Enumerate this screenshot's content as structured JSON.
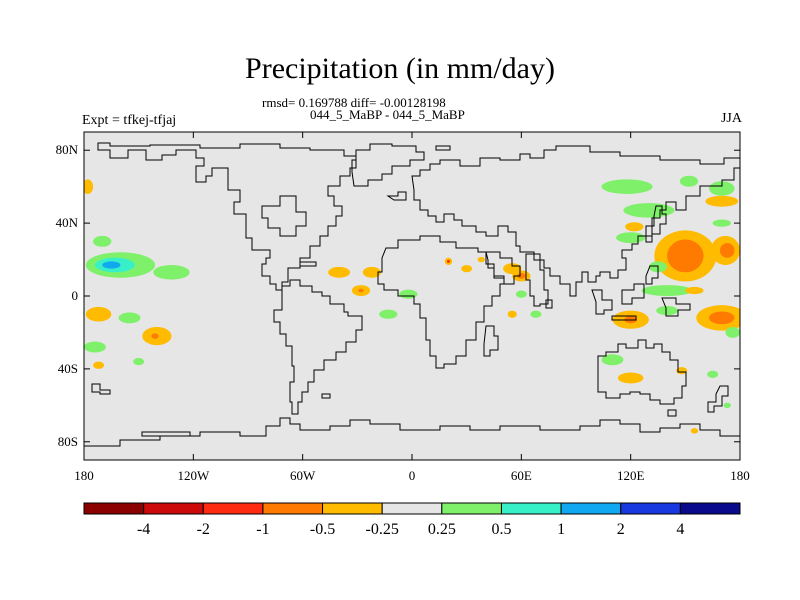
{
  "title": "Precipitation (in mm/day)",
  "stats": "rmsd= 0.169788 diff= -0.00128198",
  "cases": "044_5_MaBP - 044_5_MaBP",
  "experiment": "Expt = tfkej-tfjaj",
  "season": "JJA",
  "chart_data": {
    "type": "heatmap",
    "projection": "cylindrical-equidistant",
    "lon_range": [
      -180,
      180
    ],
    "lat_range": [
      -90,
      90
    ],
    "lon_ticks": [
      {
        "value": -180,
        "label": "180"
      },
      {
        "value": -120,
        "label": "120W"
      },
      {
        "value": -60,
        "label": "60W"
      },
      {
        "value": 0,
        "label": "0"
      },
      {
        "value": 60,
        "label": "60E"
      },
      {
        "value": 120,
        "label": "120E"
      },
      {
        "value": 180,
        "label": "180"
      }
    ],
    "lat_ticks": [
      {
        "value": 80,
        "label": "80N"
      },
      {
        "value": 40,
        "label": "40N"
      },
      {
        "value": 0,
        "label": "0"
      },
      {
        "value": -40,
        "label": "40S"
      },
      {
        "value": -80,
        "label": "80S"
      }
    ],
    "colorbar": {
      "labels": [
        "-4",
        "-2",
        "-1",
        "-0.5",
        "-0.25",
        "0.25",
        "0.5",
        "1",
        "2",
        "4"
      ],
      "colors": [
        "#8b0000",
        "#cc0a0a",
        "#ff2b10",
        "#ff7a00",
        "#ffbb00",
        "#e6e6e6",
        "#7ff06a",
        "#38f0c8",
        "#10a8f0",
        "#1838e0",
        "#0a0a8c"
      ]
    },
    "background_color": "#e6e6e6",
    "anomaly_blobs": [
      {
        "lon": -178,
        "lat": 60,
        "rlon": 3,
        "rlat": 4,
        "color": "#ffbb00"
      },
      {
        "lon": -170,
        "lat": 30,
        "rlon": 5,
        "rlat": 3,
        "color": "#7ff06a"
      },
      {
        "lon": -160,
        "lat": 17,
        "rlon": 19,
        "rlat": 7,
        "color": "#7ff06a"
      },
      {
        "lon": -163,
        "lat": 17,
        "rlon": 11,
        "rlat": 4,
        "color": "#38f0c8"
      },
      {
        "lon": -165,
        "lat": 17,
        "rlon": 5,
        "rlat": 2,
        "color": "#10a8f0"
      },
      {
        "lon": -132,
        "lat": 13,
        "rlon": 10,
        "rlat": 4,
        "color": "#7ff06a"
      },
      {
        "lon": -172,
        "lat": -10,
        "rlon": 7,
        "rlat": 4,
        "color": "#ffbb00"
      },
      {
        "lon": -155,
        "lat": -12,
        "rlon": 6,
        "rlat": 3,
        "color": "#7ff06a"
      },
      {
        "lon": -140,
        "lat": -22,
        "rlon": 8,
        "rlat": 5,
        "color": "#ffbb00"
      },
      {
        "lon": -141,
        "lat": -22,
        "rlon": 2,
        "rlat": 1.5,
        "color": "#ff7a00"
      },
      {
        "lon": -174,
        "lat": -28,
        "rlon": 6,
        "rlat": 3,
        "color": "#7ff06a"
      },
      {
        "lon": -150,
        "lat": -36,
        "rlon": 3,
        "rlat": 2,
        "color": "#7ff06a"
      },
      {
        "lon": -172,
        "lat": -38,
        "rlon": 3,
        "rlat": 2,
        "color": "#ffbb00"
      },
      {
        "lon": -40,
        "lat": 13,
        "rlon": 6,
        "rlat": 3,
        "color": "#ffbb00"
      },
      {
        "lon": -22,
        "lat": 13,
        "rlon": 5,
        "rlat": 3,
        "color": "#ffbb00"
      },
      {
        "lon": -28,
        "lat": 3,
        "rlon": 5,
        "rlat": 3,
        "color": "#ffbb00"
      },
      {
        "lon": -28,
        "lat": 3,
        "rlon": 1.5,
        "rlat": 1,
        "color": "#ff7a00"
      },
      {
        "lon": -2,
        "lat": 1,
        "rlon": 5,
        "rlat": 2.5,
        "color": "#7ff06a"
      },
      {
        "lon": -13,
        "lat": -10,
        "rlon": 5,
        "rlat": 2.5,
        "color": "#7ff06a"
      },
      {
        "lon": 20,
        "lat": 19,
        "rlon": 2,
        "rlat": 2,
        "color": "#ffbb00"
      },
      {
        "lon": 20,
        "lat": 19,
        "rlon": 0.8,
        "rlat": 0.8,
        "color": "#ff2b10"
      },
      {
        "lon": 30,
        "lat": 15,
        "rlon": 3,
        "rlat": 2,
        "color": "#ffbb00"
      },
      {
        "lon": 38,
        "lat": 20,
        "rlon": 2,
        "rlat": 1.5,
        "color": "#ffbb00"
      },
      {
        "lon": 55,
        "lat": 15,
        "rlon": 5,
        "rlat": 3,
        "color": "#ffbb00"
      },
      {
        "lon": 60,
        "lat": 11,
        "rlon": 5,
        "rlat": 3,
        "color": "#ffbb00"
      },
      {
        "lon": 60,
        "lat": 11,
        "rlon": 2.2,
        "rlat": 1.6,
        "color": "#ff7a00"
      },
      {
        "lon": 60,
        "lat": 1,
        "rlon": 3,
        "rlat": 2,
        "color": "#7ff06a"
      },
      {
        "lon": 55,
        "lat": -10,
        "rlon": 2.5,
        "rlat": 2,
        "color": "#ffbb00"
      },
      {
        "lon": 68,
        "lat": -10,
        "rlon": 3,
        "rlat": 2,
        "color": "#7ff06a"
      },
      {
        "lon": 118,
        "lat": 60,
        "rlon": 14,
        "rlat": 4,
        "color": "#7ff06a"
      },
      {
        "lon": 152,
        "lat": 63,
        "rlon": 5,
        "rlat": 3,
        "color": "#7ff06a"
      },
      {
        "lon": 170,
        "lat": 59,
        "rlon": 7,
        "rlat": 4,
        "color": "#7ff06a"
      },
      {
        "lon": 130,
        "lat": 47,
        "rlon": 14,
        "rlat": 4,
        "color": "#7ff06a"
      },
      {
        "lon": 170,
        "lat": 52,
        "rlon": 9,
        "rlat": 3,
        "color": "#ffbb00"
      },
      {
        "lon": 170,
        "lat": 40,
        "rlon": 5,
        "rlat": 2,
        "color": "#7ff06a"
      },
      {
        "lon": 120,
        "lat": 32,
        "rlon": 8,
        "rlat": 3,
        "color": "#7ff06a"
      },
      {
        "lon": 122,
        "lat": 38,
        "rlon": 5,
        "rlat": 2.5,
        "color": "#ffbb00"
      },
      {
        "lon": 150,
        "lat": 22,
        "rlon": 17,
        "rlat": 14,
        "color": "#ffbb00"
      },
      {
        "lon": 150,
        "lat": 22,
        "rlon": 10,
        "rlat": 9,
        "color": "#ff7a00"
      },
      {
        "lon": 172,
        "lat": 25,
        "rlon": 8,
        "rlat": 8,
        "color": "#ffbb00"
      },
      {
        "lon": 173,
        "lat": 25,
        "rlon": 4,
        "rlat": 4,
        "color": "#ff7a00"
      },
      {
        "lon": 135,
        "lat": 16,
        "rlon": 5,
        "rlat": 3,
        "color": "#7ff06a"
      },
      {
        "lon": 140,
        "lat": 3,
        "rlon": 14,
        "rlat": 3,
        "color": "#7ff06a"
      },
      {
        "lon": 155,
        "lat": 3,
        "rlon": 5,
        "rlat": 2,
        "color": "#ffbb00"
      },
      {
        "lon": 120,
        "lat": -13,
        "rlon": 10,
        "rlat": 5,
        "color": "#ffbb00"
      },
      {
        "lon": 120,
        "lat": -13,
        "rlon": 3.5,
        "rlat": 2,
        "color": "#ff7a00"
      },
      {
        "lon": 170,
        "lat": -12,
        "rlon": 14,
        "rlat": 7,
        "color": "#ffbb00"
      },
      {
        "lon": 170,
        "lat": -12,
        "rlon": 7,
        "rlat": 3.5,
        "color": "#ff7a00"
      },
      {
        "lon": 140,
        "lat": -8,
        "rlon": 6,
        "rlat": 2.5,
        "color": "#7ff06a"
      },
      {
        "lon": 176,
        "lat": -20,
        "rlon": 4,
        "rlat": 3,
        "color": "#7ff06a"
      },
      {
        "lon": 110,
        "lat": -35,
        "rlon": 6,
        "rlat": 3,
        "color": "#7ff06a"
      },
      {
        "lon": 120,
        "lat": -45,
        "rlon": 7,
        "rlat": 3,
        "color": "#ffbb00"
      },
      {
        "lon": 148,
        "lat": -41,
        "rlon": 3,
        "rlat": 2,
        "color": "#ffbb00"
      },
      {
        "lon": 165,
        "lat": -43,
        "rlon": 3,
        "rlat": 2,
        "color": "#7ff06a"
      },
      {
        "lon": 155,
        "lat": -74,
        "rlon": 2,
        "rlat": 1.5,
        "color": "#ffbb00"
      },
      {
        "lon": 173,
        "lat": -60,
        "rlon": 2,
        "rlat": 1.5,
        "color": "#7ff06a"
      }
    ]
  }
}
